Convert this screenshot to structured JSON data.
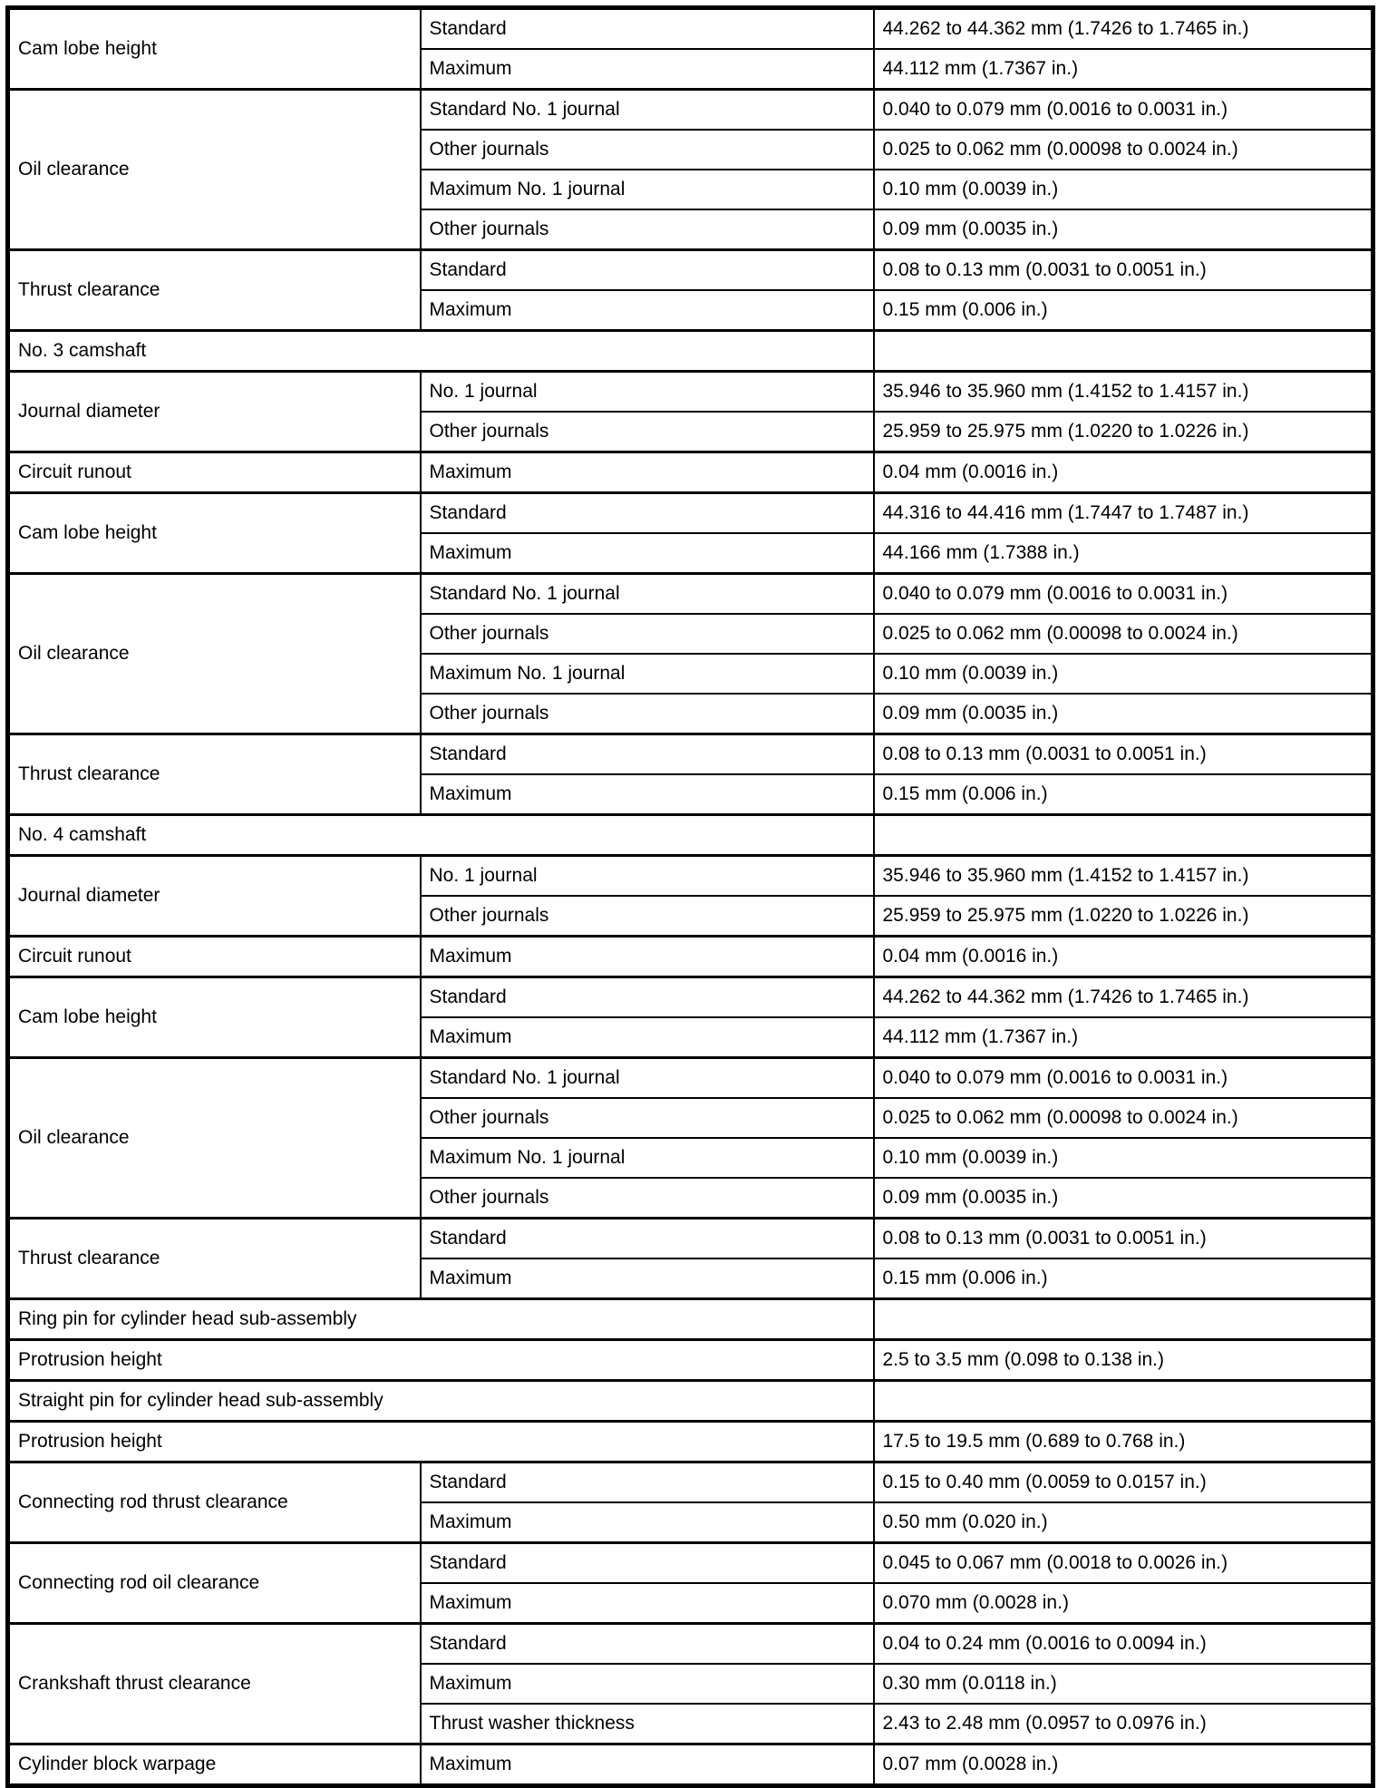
{
  "page": {
    "background": "#ffffff",
    "text_color": "#000000",
    "border_color": "#000000",
    "description": "Engine service specification table (camshaft, cylinder head pins, connecting rod, crankshaft, cylinder block)"
  },
  "table": {
    "rows": [
      {
        "item": "Cam lobe height",
        "condition": "Standard",
        "value": "44.262 to 44.362 mm (1.7426 to 1.7465 in.)"
      },
      {
        "condition": "Maximum",
        "value": "44.112 mm (1.7367 in.)"
      },
      {
        "item": "Oil clearance",
        "condition": "Standard No. 1 journal",
        "value": "0.040 to 0.079 mm (0.0016 to 0.0031 in.)"
      },
      {
        "condition": "Other journals",
        "value": "0.025 to 0.062 mm (0.00098 to 0.0024 in.)"
      },
      {
        "condition": "Maximum No. 1 journal",
        "value": "0.10 mm (0.0039 in.)"
      },
      {
        "condition": "Other journals",
        "value": "0.09 mm (0.0035 in.)"
      },
      {
        "item": "Thrust clearance",
        "condition": "Standard",
        "value": "0.08 to 0.13 mm (0.0031 to 0.0051 in.)"
      },
      {
        "condition": "Maximum",
        "value": "0.15 mm (0.006 in.)"
      },
      {
        "section": "No. 3 camshaft",
        "value": ""
      },
      {
        "item": "Journal diameter",
        "condition": "No. 1 journal",
        "value": "35.946 to 35.960 mm (1.4152 to 1.4157 in.)"
      },
      {
        "condition": "Other journals",
        "value": "25.959 to 25.975 mm (1.0220 to 1.0226 in.)"
      },
      {
        "item": "Circuit runout",
        "condition": "Maximum",
        "value": "0.04 mm (0.0016 in.)"
      },
      {
        "item": "Cam lobe height",
        "condition": "Standard",
        "value": "44.316 to 44.416 mm (1.7447 to 1.7487 in.)"
      },
      {
        "condition": "Maximum",
        "value": "44.166 mm (1.7388 in.)"
      },
      {
        "item": "Oil clearance",
        "condition": "Standard No. 1 journal",
        "value": "0.040 to 0.079 mm (0.0016 to 0.0031 in.)"
      },
      {
        "condition": "Other journals",
        "value": "0.025 to 0.062 mm (0.00098 to 0.0024 in.)"
      },
      {
        "condition": "Maximum No. 1 journal",
        "value": "0.10 mm (0.0039 in.)"
      },
      {
        "condition": "Other journals",
        "value": "0.09 mm (0.0035 in.)"
      },
      {
        "item": "Thrust clearance",
        "condition": "Standard",
        "value": "0.08 to 0.13 mm (0.0031 to 0.0051 in.)"
      },
      {
        "condition": "Maximum",
        "value": "0.15 mm (0.006 in.)"
      },
      {
        "section": "No. 4 camshaft",
        "value": ""
      },
      {
        "item": "Journal diameter",
        "condition": "No. 1 journal",
        "value": "35.946 to 35.960 mm (1.4152 to 1.4157 in.)"
      },
      {
        "condition": "Other journals",
        "value": "25.959 to 25.975 mm (1.0220 to 1.0226 in.)"
      },
      {
        "item": "Circuit runout",
        "condition": "Maximum",
        "value": "0.04 mm (0.0016 in.)"
      },
      {
        "item": "Cam lobe height",
        "condition": "Standard",
        "value": "44.262 to 44.362 mm (1.7426 to 1.7465 in.)"
      },
      {
        "condition": "Maximum",
        "value": "44.112 mm (1.7367 in.)"
      },
      {
        "item": "Oil clearance",
        "condition": "Standard No. 1 journal",
        "value": "0.040 to 0.079 mm (0.0016 to 0.0031 in.)"
      },
      {
        "condition": "Other journals",
        "value": "0.025 to 0.062 mm (0.00098 to 0.0024 in.)"
      },
      {
        "condition": "Maximum No. 1 journal",
        "value": "0.10 mm (0.0039 in.)"
      },
      {
        "condition": "Other journals",
        "value": "0.09 mm (0.0035 in.)"
      },
      {
        "item": "Thrust clearance",
        "condition": "Standard",
        "value": "0.08 to 0.13 mm (0.0031 to 0.0051 in.)"
      },
      {
        "condition": "Maximum",
        "value": "0.15 mm (0.006 in.)"
      },
      {
        "section": "Ring pin for cylinder head sub-assembly",
        "value": ""
      },
      {
        "item": "Protrusion height",
        "value": "2.5 to 3.5 mm (0.098 to 0.138 in.)"
      },
      {
        "section": "Straight pin for cylinder head sub-assembly",
        "value": ""
      },
      {
        "item": "Protrusion height",
        "value": "17.5 to 19.5 mm (0.689 to 0.768 in.)"
      },
      {
        "item": "Connecting rod thrust clearance",
        "condition": "Standard",
        "value": "0.15 to 0.40 mm (0.0059 to 0.0157 in.)"
      },
      {
        "condition": "Maximum",
        "value": "0.50 mm (0.020 in.)"
      },
      {
        "item": "Connecting rod oil clearance",
        "condition": "Standard",
        "value": "0.045 to 0.067 mm (0.0018 to 0.0026 in.)"
      },
      {
        "condition": "Maximum",
        "value": "0.070 mm (0.0028 in.)"
      },
      {
        "item": "Crankshaft thrust clearance",
        "condition": "Standard",
        "value": "0.04 to 0.24 mm (0.0016 to 0.0094 in.)"
      },
      {
        "condition": "Maximum",
        "value": "0.30 mm (0.0118 in.)"
      },
      {
        "condition": "Thrust washer thickness",
        "value": "2.43 to 2.48 mm (0.0957 to 0.0976 in.)"
      },
      {
        "item": "Cylinder block warpage",
        "condition": "Maximum",
        "value": "0.07 mm (0.0028 in.)"
      }
    ]
  }
}
